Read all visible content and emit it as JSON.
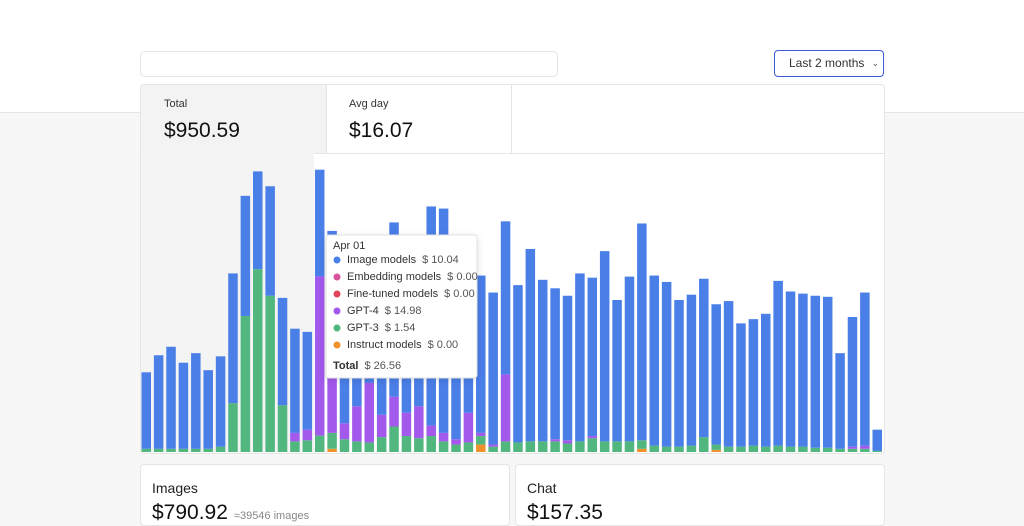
{
  "filter": {
    "range": "Last 2 months"
  },
  "summary": [
    {
      "label": "Total",
      "value": "$950.59"
    },
    {
      "label": "Avg day",
      "value": "$16.07"
    }
  ],
  "chart_data": {
    "type": "stacked_bar",
    "categories": [
      null,
      null,
      null,
      null,
      null,
      null,
      null,
      null,
      null,
      null,
      null,
      null,
      null,
      null,
      "Apr 01",
      null,
      null,
      null,
      null,
      null,
      null,
      null,
      null,
      null,
      null,
      null,
      null,
      null,
      null,
      null,
      null,
      null,
      null,
      null,
      null,
      null,
      null,
      null,
      null,
      null,
      null,
      null,
      null,
      null,
      null,
      null,
      null,
      null,
      null,
      null,
      null,
      null,
      null,
      null,
      null,
      null,
      null,
      null,
      null,
      null
    ],
    "ylim": [
      0,
      27
    ],
    "series": [
      {
        "name": "Image models",
        "color": "#4a7fe8",
        "values": [
          7.2,
          8.8,
          9.6,
          8.1,
          9.0,
          7.4,
          8.5,
          12.2,
          11.3,
          9.2,
          10.3,
          10.1,
          9.8,
          9.2,
          10.04,
          9.0,
          15.3,
          14.6,
          13.3,
          13.5,
          16.4,
          14.7,
          13.7,
          20.6,
          21.1,
          17.7,
          16.1,
          14.8,
          14.3,
          14.4,
          14.8,
          18.1,
          15.2,
          14.2,
          13.6,
          15.8,
          14.9,
          17.9,
          13.3,
          15.5,
          20.4,
          16.0,
          15.5,
          13.8,
          14.2,
          14.9,
          13.2,
          13.7,
          11.6,
          11.9,
          12.5,
          15.5,
          14.6,
          14.4,
          14.3,
          14.2,
          9.0,
          12.2,
          14.4,
          2.0
        ]
      },
      {
        "name": "Embedding models",
        "color": "#d6549e",
        "values": [
          0,
          0,
          0,
          0,
          0,
          0,
          0,
          0,
          0,
          0,
          0,
          0,
          0,
          0,
          0,
          0,
          0,
          0,
          0,
          0,
          0,
          0,
          0,
          0,
          0,
          0,
          0,
          0,
          0,
          0,
          0,
          0,
          0,
          0,
          0,
          0,
          0,
          0,
          0,
          0,
          0,
          0,
          0,
          0,
          0,
          0,
          0,
          0,
          0,
          0,
          0,
          0,
          0,
          0,
          0,
          0,
          0,
          0,
          0,
          0
        ]
      },
      {
        "name": "Fine-tuned models",
        "color": "#e0435a",
        "values": [
          0,
          0,
          0,
          0,
          0,
          0,
          0,
          0,
          0,
          0,
          0,
          0,
          0,
          0,
          0,
          0,
          0,
          0,
          0,
          0,
          0,
          0,
          0,
          0,
          0,
          0,
          0,
          0,
          0,
          0,
          0,
          0,
          0,
          0,
          0,
          0,
          0,
          0,
          0,
          0,
          0,
          0,
          0,
          0,
          0,
          0,
          0,
          0,
          0,
          0,
          0,
          0,
          0,
          0,
          0,
          0,
          0,
          0,
          0,
          0
        ]
      },
      {
        "name": "GPT-4",
        "color": "#a259ec",
        "values": [
          0,
          0,
          0,
          0,
          0,
          0,
          0,
          0,
          0,
          0,
          0,
          0,
          0.8,
          1.0,
          14.98,
          10.0,
          1.5,
          3.3,
          5.6,
          2.1,
          2.8,
          2.2,
          3.0,
          1.0,
          0.8,
          0.5,
          2.8,
          0.3,
          0.2,
          6.3,
          0,
          0,
          0,
          0.2,
          0.3,
          0,
          0.2,
          0,
          0,
          0,
          0,
          0,
          0,
          0,
          0,
          0,
          0,
          0,
          0,
          0,
          0,
          0,
          0,
          0,
          0,
          0,
          0,
          0.2,
          0.3,
          0
        ]
      },
      {
        "name": "GPT-3",
        "color": "#52b77f",
        "values": [
          0.3,
          0.3,
          0.3,
          0.3,
          0.3,
          0.3,
          0.5,
          4.6,
          12.8,
          17.2,
          14.7,
          4.4,
          1.0,
          1.1,
          1.54,
          1.5,
          1.2,
          1.0,
          0.9,
          1.4,
          2.4,
          1.5,
          1.3,
          1.5,
          1.0,
          0.7,
          0.9,
          0.8,
          0.5,
          1.0,
          0.9,
          1.0,
          1.0,
          1.0,
          0.8,
          1.0,
          1.3,
          1.0,
          1.0,
          1.0,
          0.8,
          0.6,
          0.5,
          0.5,
          0.6,
          1.4,
          0.5,
          0.5,
          0.5,
          0.6,
          0.5,
          0.6,
          0.5,
          0.5,
          0.4,
          0.4,
          0.3,
          0.3,
          0.3,
          0.1
        ]
      },
      {
        "name": "Instruct models",
        "color": "#f0922b",
        "values": [
          0,
          0,
          0,
          0,
          0,
          0,
          0,
          0,
          0,
          0,
          0,
          0,
          0,
          0,
          0,
          0.3,
          0,
          0,
          0,
          0,
          0,
          0,
          0,
          0,
          0,
          0,
          0,
          0.7,
          0,
          0,
          0,
          0,
          0,
          0,
          0,
          0,
          0,
          0,
          0,
          0,
          0.3,
          0,
          0,
          0,
          0,
          0,
          0.2,
          0,
          0,
          0,
          0,
          0,
          0,
          0,
          0,
          0,
          0,
          0,
          0,
          0
        ]
      }
    ],
    "tooltip": {
      "value_labels": [
        "$ 10.04",
        "$ 0.00",
        "$ 0.00",
        "$ 14.98",
        "$ 1.54",
        "$ 0.00"
      ],
      "total_label": "Total",
      "total": "$ 26.56"
    }
  },
  "breakdown": [
    {
      "label": "Images",
      "value": "$790.92",
      "note": "≈39546 images"
    },
    {
      "label": "Chat",
      "value": "$157.35"
    }
  ]
}
